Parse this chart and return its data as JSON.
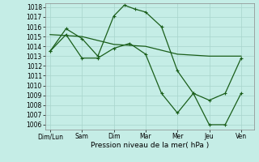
{
  "x_labels": [
    "Dim/Lun",
    "Sam",
    "Dim",
    "Mar",
    "Mer",
    "Jeu",
    "Ven"
  ],
  "yticks": [
    1006,
    1007,
    1008,
    1009,
    1010,
    1011,
    1012,
    1013,
    1014,
    1015,
    1016,
    1017,
    1018
  ],
  "ylim_min": 1005.5,
  "ylim_max": 1018.4,
  "xlim_min": -0.15,
  "xlim_max": 6.4,
  "line1_x": [
    0,
    0.5,
    1.0,
    1.5,
    2.0,
    2.33,
    2.67,
    3.0,
    3.5,
    4.0,
    4.5,
    5.0,
    5.5,
    6.0
  ],
  "line1_y": [
    1013.5,
    1015.8,
    1014.8,
    1013.0,
    1017.1,
    1018.2,
    1017.8,
    1017.5,
    1016.0,
    1011.5,
    1009.2,
    1008.5,
    1009.2,
    1012.8
  ],
  "line2_x": [
    0,
    1,
    2,
    3,
    4,
    5,
    6
  ],
  "line2_y": [
    1015.2,
    1015.0,
    1014.2,
    1014.0,
    1013.2,
    1013.0,
    1013.0
  ],
  "line3_x": [
    0,
    0.5,
    1.0,
    1.5,
    2.0,
    2.5,
    3.0,
    3.5,
    4.0,
    4.5,
    5.0,
    5.5,
    6.0
  ],
  "line3_y": [
    1013.5,
    1015.2,
    1012.8,
    1012.8,
    1013.8,
    1014.3,
    1013.2,
    1009.2,
    1007.2,
    1009.2,
    1006.0,
    1006.0,
    1009.2
  ],
  "xlabel": "Pression niveau de la mer( hPa )",
  "bg_color": "#c5ede6",
  "grid_color": "#a8d4cc",
  "line_color": "#1a5e1a",
  "tick_fontsize": 5.5,
  "xlabel_fontsize": 6.5,
  "linewidth": 0.9,
  "marker_size": 3.0,
  "marker_ew": 0.8
}
